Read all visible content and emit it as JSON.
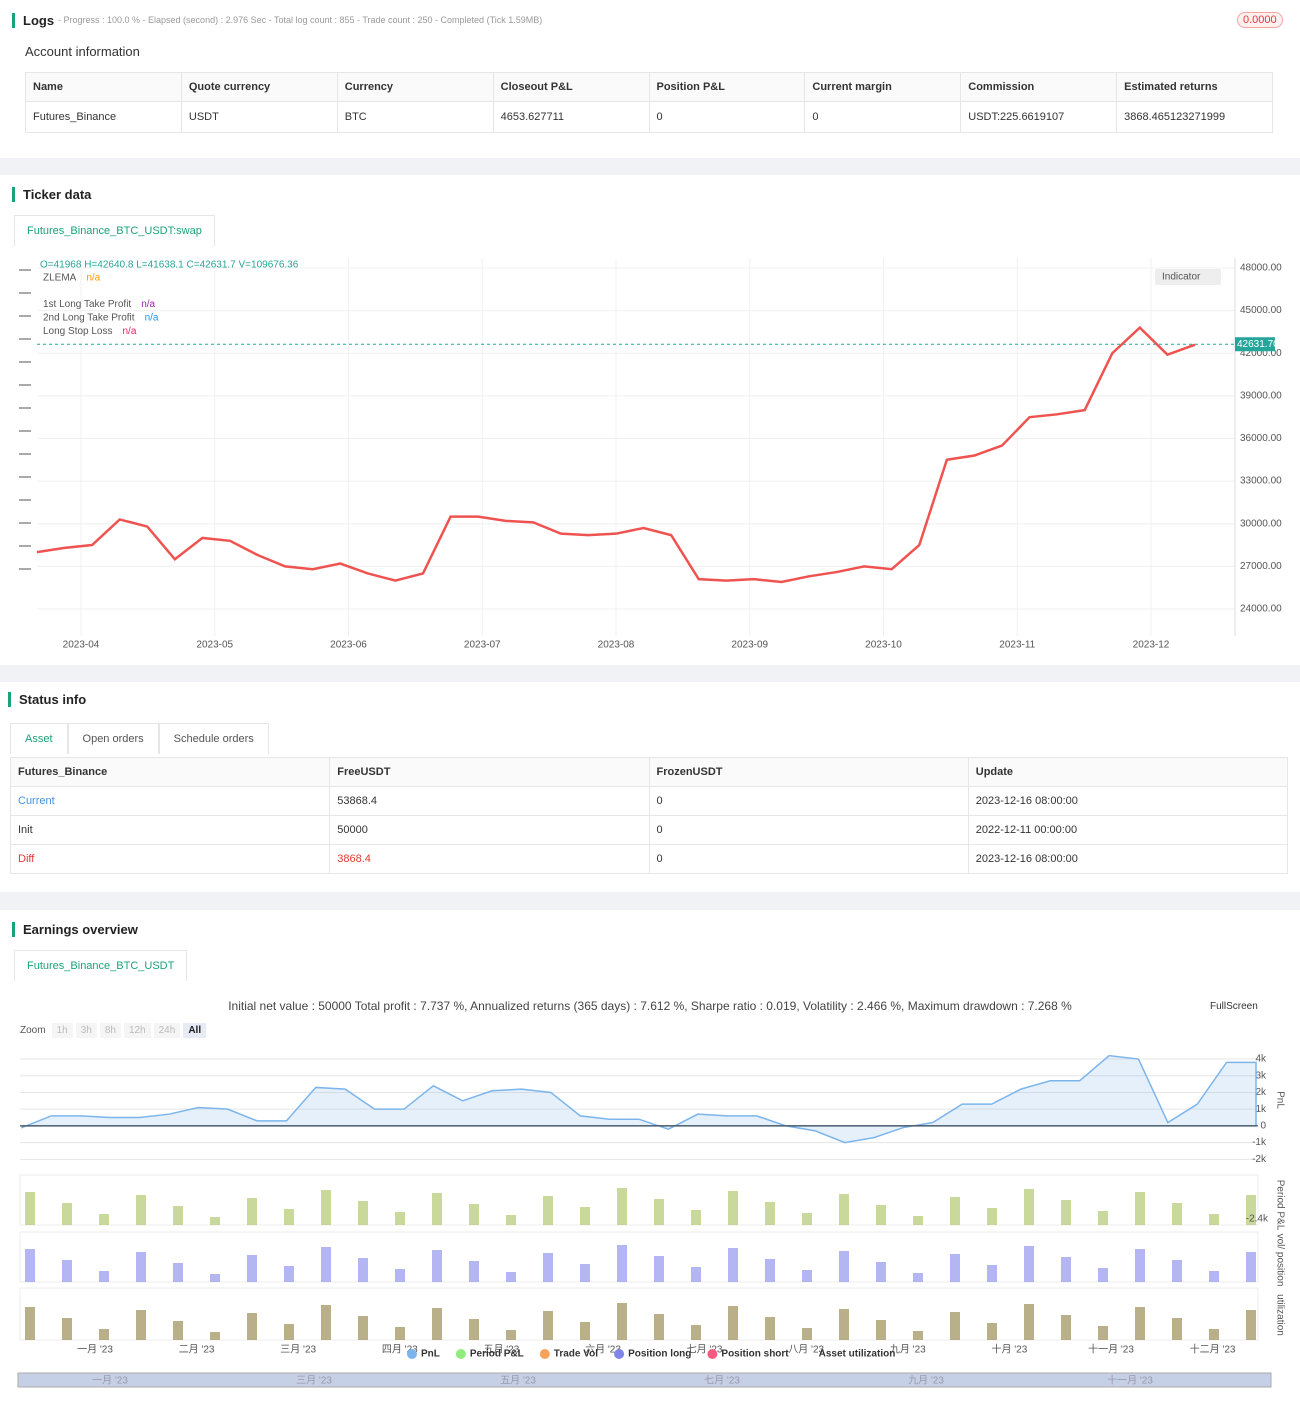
{
  "logs": {
    "title": "Logs",
    "summary": "- Progress : 100.0 % - Elapsed (second) : 2.976 Sec - Total log count : 855 - Trade count : 250 - Completed (Tick 1.59MB)",
    "badge": "0.0000"
  },
  "account": {
    "title": "Account information",
    "columns": [
      "Name",
      "Quote currency",
      "Currency",
      "Closeout P&L",
      "Position P&L",
      "Current margin",
      "Commission",
      "Estimated returns"
    ],
    "rows": [
      [
        "Futures_Binance",
        "USDT",
        "BTC",
        "4653.627711",
        "0",
        "0",
        "USDT:225.6619107",
        "3868.465123271999"
      ]
    ]
  },
  "ticker": {
    "title": "Ticker data",
    "tab": "Futures_Binance_BTC_USDT:swap",
    "ohlc": "O=41968 H=42640.8 L=41638.1 C=42631.7 V=109676.36",
    "indicators": [
      {
        "name": "ZLEMA",
        "value": "n/a",
        "color": "#ff9800"
      },
      {
        "name": "1st Long Take Profit",
        "value": "n/a",
        "color": "#9c27b0"
      },
      {
        "name": "2nd Long Take Profit",
        "value": "n/a",
        "color": "#2196f3"
      },
      {
        "name": "Long Stop Loss",
        "value": "n/a",
        "color": "#e91e63"
      }
    ],
    "indicator_button": "Indicator",
    "chart": {
      "type": "line",
      "color": "#ef5350",
      "values": [
        28000,
        28300,
        28500,
        30300,
        29800,
        27500,
        29000,
        28800,
        27800,
        27000,
        26800,
        27200,
        26500,
        26000,
        26500,
        30500,
        30500,
        30200,
        30100,
        29300,
        29200,
        29300,
        29700,
        29200,
        26100,
        26000,
        26100,
        25900,
        26300,
        26600,
        27000,
        26800,
        28500,
        34500,
        34800,
        35500,
        37500,
        37700,
        38000,
        42000,
        43800,
        41900,
        42600
      ],
      "ylim": [
        22100,
        48700
      ],
      "yticks": [
        {
          "value": 48000,
          "label": "48000.00"
        },
        {
          "value": 45000,
          "label": "45000.00"
        },
        {
          "value": 42000,
          "label": "42000.00"
        },
        {
          "value": 39000,
          "label": "39000.00"
        },
        {
          "value": 36000,
          "label": "36000.00"
        },
        {
          "value": 33000,
          "label": "33000.00"
        },
        {
          "value": 30000,
          "label": "30000.00"
        },
        {
          "value": 27000,
          "label": "27000.00"
        },
        {
          "value": 24000,
          "label": "24000.00"
        }
      ],
      "x_labels": [
        "2023-04",
        "2023-05",
        "2023-06",
        "2023-07",
        "2023-08",
        "2023-09",
        "2023-10",
        "2023-11",
        "2023-12"
      ],
      "last_price": {
        "value": 42631.7,
        "label": "42631.70"
      }
    }
  },
  "status": {
    "title": "Status info",
    "tabs": [
      "Asset",
      "Open orders",
      "Schedule orders"
    ],
    "columns": [
      "Futures_Binance",
      "FreeUSDT",
      "FrozenUSDT",
      "Update"
    ],
    "rows": [
      [
        "Current",
        "53868.4",
        "0",
        "2023-12-16 08:00:00"
      ],
      [
        "Init",
        "50000",
        "0",
        "2022-12-11 00:00:00"
      ],
      [
        "Diff",
        "3868.4",
        "0",
        "2023-12-16 08:00:00"
      ]
    ]
  },
  "earnings": {
    "title": "Earnings overview",
    "tab": "Futures_Binance_BTC_USDT",
    "stats": "Initial net value : 50000 Total profit : 7.737 %, Annualized returns (365 days) : 7.612 %, Sharpe ratio : 0.019, Volatility : 2.466 %, Maximum drawdown : 7.268 %",
    "zoom_label": "Zoom",
    "zoom": [
      "1h",
      "3h",
      "8h",
      "12h",
      "24h",
      "All"
    ],
    "fullscreen": "FullScreen",
    "chart": {
      "type": "area",
      "color": "#7cb5ec",
      "values": [
        -100,
        600,
        600,
        500,
        500,
        700,
        1100,
        1000,
        300,
        300,
        2300,
        2200,
        1000,
        1000,
        2400,
        1500,
        2100,
        2200,
        2000,
        600,
        400,
        400,
        -200,
        700,
        600,
        600,
        0,
        -300,
        -1000,
        -700,
        -100,
        200,
        1300,
        1300,
        2200,
        2700,
        2700,
        4200,
        4000,
        200,
        1300,
        3800,
        3800
      ],
      "ylim": [
        -2340,
        4540
      ],
      "yticks": [
        {
          "value": 4000,
          "label": "4k"
        },
        {
          "value": 3000,
          "label": "3k"
        },
        {
          "value": 2000,
          "label": "2k"
        },
        {
          "value": 1000,
          "label": "1k"
        },
        0,
        {
          "value": -1000,
          "label": "-1k"
        },
        {
          "value": -2000,
          "label": "-2k"
        }
      ],
      "x_labels": [
        "一月 '23",
        "二月 '23",
        "三月 '23",
        "四月 '23",
        "五月 '23",
        "六月 '23",
        "七月 '23",
        "八月 '23",
        "九月 '23",
        "十月 '23",
        "十一月 '23",
        "十二月 '23"
      ],
      "axis_titles": [
        "PnL",
        "Period P&L",
        "vol/ position",
        "utilization"
      ],
      "period_min_label": "-2.4k"
    },
    "legend": [
      {
        "name": "PnL",
        "color": "#7cb5ec"
      },
      {
        "name": "Period P&L",
        "color": "#90ed7d"
      },
      {
        "name": "Trade Vol",
        "color": "#f7a35c"
      },
      {
        "name": "Position long",
        "color": "#8085e9"
      },
      {
        "name": "Position short",
        "color": "#f15c80"
      },
      {
        "name": "Asset utilization"
      }
    ],
    "navigator_labels": [
      "一月 '23",
      "三月 '23",
      "五月 '23",
      "七月 '23",
      "九月 '23",
      "十一月 '23"
    ]
  }
}
